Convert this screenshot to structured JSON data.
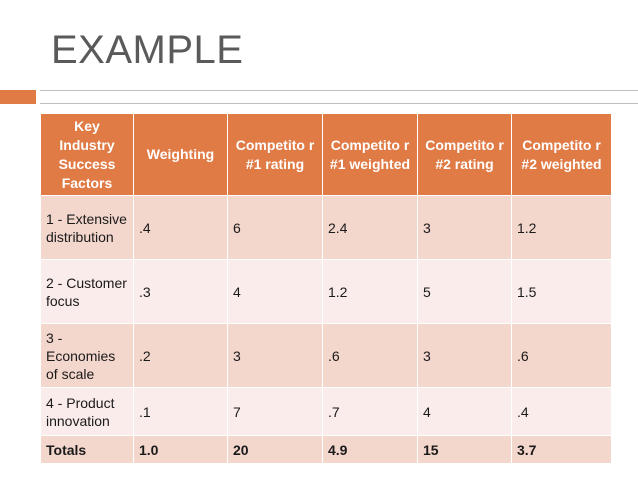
{
  "slide": {
    "title": "EXAMPLE"
  },
  "table": {
    "headers": [
      "Key Industry Success Factors",
      "Weighting",
      "Competito r #1 rating",
      "Competito r #1 weighted",
      "Competito r #2 rating",
      "Competito r #2 weighted"
    ],
    "rows": [
      [
        "1 - Extensive distribution",
        ".4",
        "6",
        "2.4",
        "3",
        "1.2"
      ],
      [
        "2 - Customer focus",
        ".3",
        "4",
        "1.2",
        "5",
        "1.5"
      ],
      [
        "3 - Economies of scale",
        ".2",
        "3",
        ".6",
        "3",
        ".6"
      ],
      [
        "4 - Product innovation",
        ".1",
        "7",
        ".7",
        "4",
        ".4"
      ]
    ],
    "totals": [
      "Totals",
      "1.0",
      "20",
      "4.9",
      "15",
      "3.7"
    ]
  },
  "colors": {
    "accent": "#e07b46",
    "band_dark": "#f3d6cc",
    "band_light": "#f9ecea"
  }
}
